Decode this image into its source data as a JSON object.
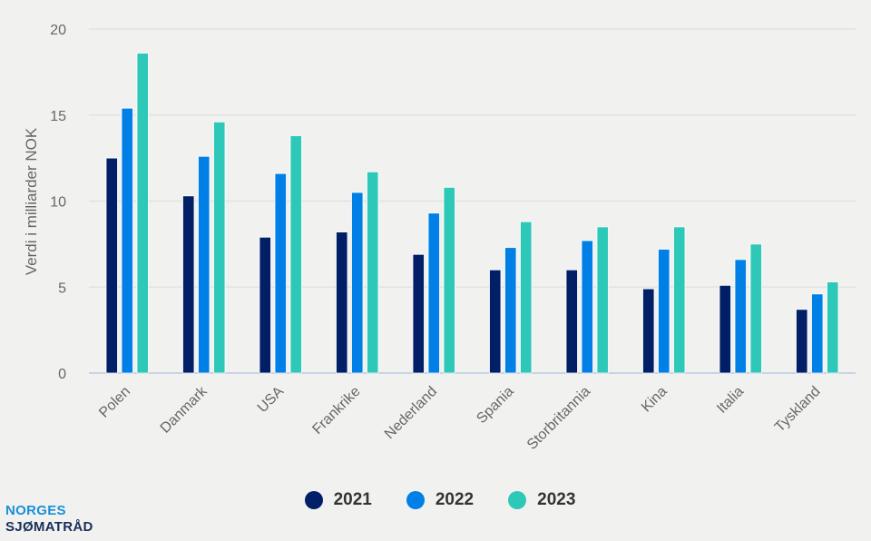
{
  "chart_data": {
    "type": "bar",
    "title": "",
    "xlabel": "",
    "ylabel": "Verdi i milliarder NOK",
    "ylim": [
      0,
      20
    ],
    "yticks": [
      0,
      5,
      10,
      15,
      20
    ],
    "grid": true,
    "legend_position": "bottom",
    "categories": [
      "Polen",
      "Danmark",
      "USA",
      "Frankrike",
      "Nederland",
      "Spania",
      "Storbritannia",
      "Kina",
      "Italia",
      "Tyskland"
    ],
    "series": [
      {
        "name": "2021",
        "color": "#001f66",
        "values": [
          12.5,
          10.3,
          7.9,
          8.2,
          6.9,
          6.0,
          6.0,
          4.9,
          5.1,
          3.7
        ]
      },
      {
        "name": "2022",
        "color": "#0080e6",
        "values": [
          15.4,
          12.6,
          11.6,
          10.5,
          9.3,
          7.3,
          7.7,
          7.2,
          6.6,
          4.6
        ]
      },
      {
        "name": "2023",
        "color": "#2ec8b8",
        "values": [
          18.6,
          14.6,
          13.8,
          11.7,
          10.8,
          8.8,
          8.5,
          8.5,
          7.5,
          5.3
        ]
      }
    ]
  },
  "logo": {
    "line1": "NORGES",
    "line2": "SJØMATRÅD",
    "color1": "#1a8fd6",
    "color2": "#1a2e5a"
  }
}
